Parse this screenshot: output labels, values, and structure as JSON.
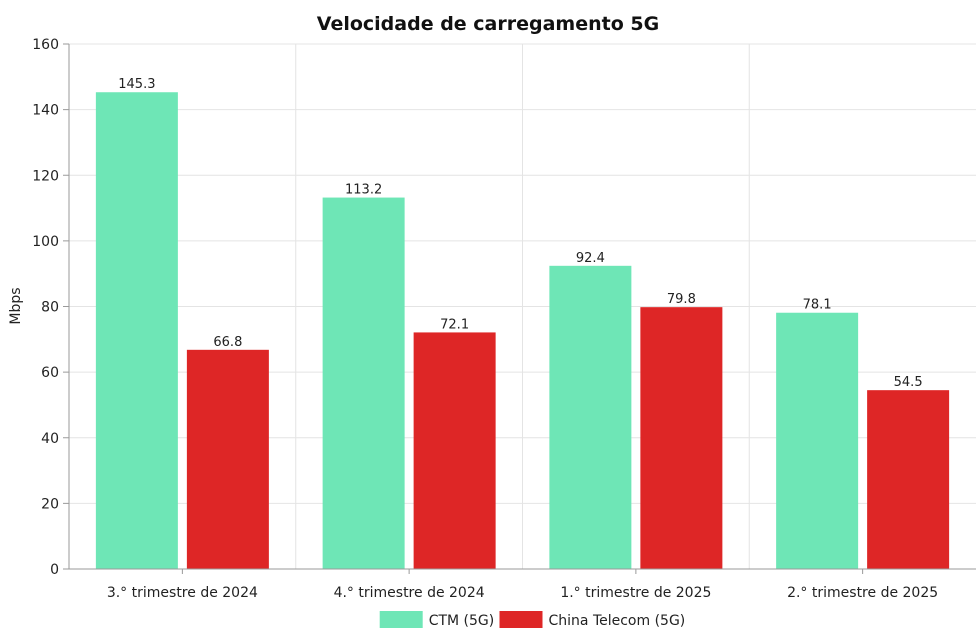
{
  "chart_data": {
    "type": "bar",
    "title": "Velocidade de carregamento 5G",
    "xlabel": "",
    "ylabel": "Mbps",
    "ylim": [
      0,
      160
    ],
    "yticks": [
      0,
      20,
      40,
      60,
      80,
      100,
      120,
      140,
      160
    ],
    "grid": true,
    "legend_position": "bottom",
    "categories": [
      "3.°  trimestre de 2024",
      "4.°  trimestre de 2024",
      "1.°  trimestre de 2025",
      "2.°  trimestre de 2025"
    ],
    "series": [
      {
        "name": "CTM (5G)",
        "color": "#6ee6b6",
        "values": [
          145.3,
          113.2,
          92.4,
          78.1
        ]
      },
      {
        "name": "China Telecom (5G)",
        "color": "#de2626",
        "values": [
          66.8,
          72.1,
          79.8,
          54.5
        ]
      }
    ]
  }
}
